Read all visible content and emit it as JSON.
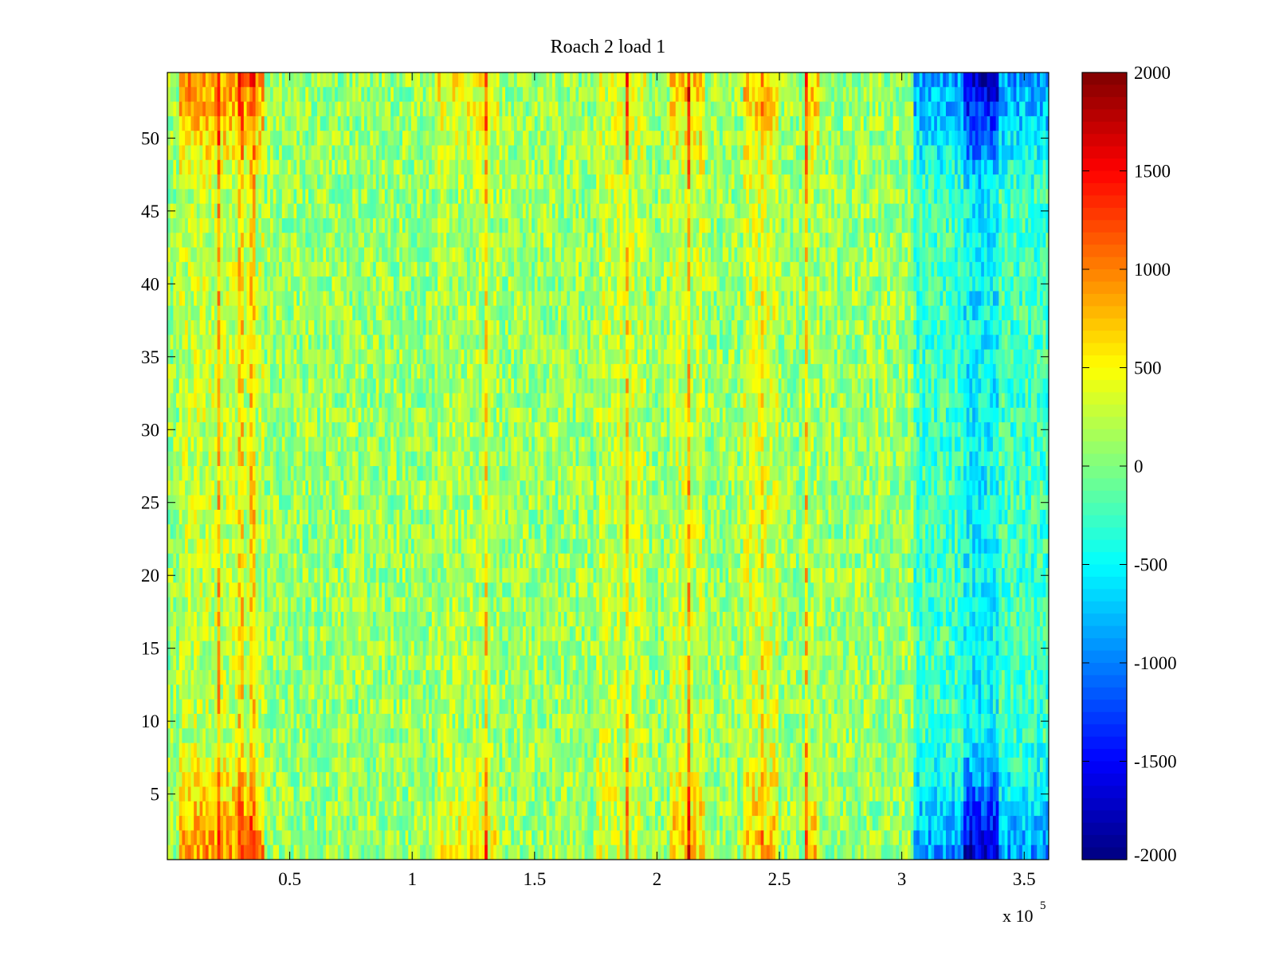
{
  "chart_data": {
    "type": "heatmap",
    "title": "Roach 2 load 1",
    "xlabel": "",
    "ylabel": "",
    "x_exponent_label": "x 10",
    "x_exponent_power": "5",
    "xlim": [
      0,
      3.6
    ],
    "ylim": [
      0.5,
      54.5
    ],
    "x_ticks": [
      0.5,
      1,
      1.5,
      2,
      2.5,
      3,
      3.5
    ],
    "x_tick_labels": [
      "0.5",
      "1",
      "1.5",
      "2",
      "2.5",
      "3",
      "3.5"
    ],
    "y_ticks": [
      5,
      10,
      15,
      20,
      25,
      30,
      35,
      40,
      45,
      50
    ],
    "y_tick_labels": [
      "5",
      "10",
      "15",
      "20",
      "25",
      "30",
      "35",
      "40",
      "45",
      "50"
    ],
    "rows": 54,
    "colormap": "jet",
    "clim": [
      -2000,
      2000
    ],
    "colorbar_ticks": [
      2000,
      1500,
      1000,
      500,
      0,
      -500,
      -1000,
      -1500,
      -2000
    ],
    "colorbar_tick_labels": [
      "2000",
      "1500",
      "1000",
      "500",
      "0",
      "-500",
      "-1000",
      "-1500",
      "-2000"
    ],
    "baseline_value": 100,
    "column_bands": [
      {
        "x_start": 0.05,
        "x_end": 0.4,
        "edge_value": 900,
        "center_value": 250
      },
      {
        "x_start": 1.1,
        "x_end": 1.35,
        "edge_value": 500,
        "center_value": 150
      },
      {
        "x_start": 1.75,
        "x_end": 1.95,
        "edge_value": 350,
        "center_value": 250
      },
      {
        "x_start": 2.05,
        "x_end": 2.2,
        "edge_value": 700,
        "center_value": 250
      },
      {
        "x_start": 2.35,
        "x_end": 2.5,
        "edge_value": 700,
        "center_value": 300
      },
      {
        "x_start": 2.6,
        "x_end": 2.66,
        "edge_value": 700,
        "center_value": 150
      },
      {
        "x_start": 3.05,
        "x_end": 3.6,
        "edge_value": -900,
        "center_value": -250
      },
      {
        "x_start": 3.25,
        "x_end": 3.4,
        "edge_value": -1700,
        "center_value": -500
      }
    ],
    "streaks": [
      {
        "x": 0.21,
        "value": 1600
      },
      {
        "x": 0.3,
        "value": 1300
      },
      {
        "x": 0.35,
        "value": 1300
      },
      {
        "x": 1.3,
        "value": 1300
      },
      {
        "x": 1.88,
        "value": 1300
      },
      {
        "x": 2.13,
        "value": 1600
      },
      {
        "x": 2.61,
        "value": 1400
      },
      {
        "x": 2.43,
        "value": 1000
      }
    ]
  }
}
